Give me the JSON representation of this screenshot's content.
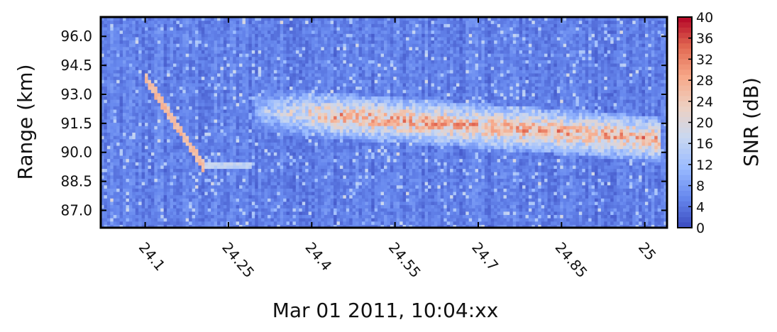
{
  "chart_data": {
    "type": "heatmap",
    "title": "",
    "xlabel": "Mar 01 2011, 10:04:xx",
    "ylabel": "Range (km)",
    "colorbar_label": "SNR (dB)",
    "xlim": [
      24.02,
      25.04
    ],
    "ylim": [
      86.1,
      97.0
    ],
    "x_ticks": [
      "24.1",
      "24.25",
      "24.4",
      "24.55",
      "24.7",
      "24.85",
      "25"
    ],
    "y_ticks": [
      "96.0",
      "94.5",
      "93.0",
      "91.5",
      "90.0",
      "88.5",
      "87.0"
    ],
    "color_range": [
      0,
      40
    ],
    "colorbar_ticks": [
      "40",
      "36",
      "32",
      "28",
      "24",
      "20",
      "16",
      "12",
      "8",
      "4",
      "0"
    ],
    "colormap": [
      "#3b4cc0",
      "#6788ee",
      "#9abbff",
      "#c9d7f0",
      "#edd1c2",
      "#f7a889",
      "#e26952",
      "#b40426"
    ],
    "background_snr": 5,
    "features": [
      {
        "name": "meteor head echo",
        "x": [
          24.1,
          24.205
        ],
        "y": [
          93.9,
          89.3
        ],
        "snr": 26
      },
      {
        "name": "head echo tail",
        "x": [
          24.205,
          24.29
        ],
        "y": [
          89.3,
          89.3
        ],
        "snr": 16
      },
      {
        "name": "echo layer",
        "x": [
          24.3,
          25.03
        ],
        "y_center": [
          92.2,
          90.7
        ],
        "y_halfwidth": [
          0.9,
          0.9
        ],
        "peak_snr": 33
      }
    ]
  }
}
